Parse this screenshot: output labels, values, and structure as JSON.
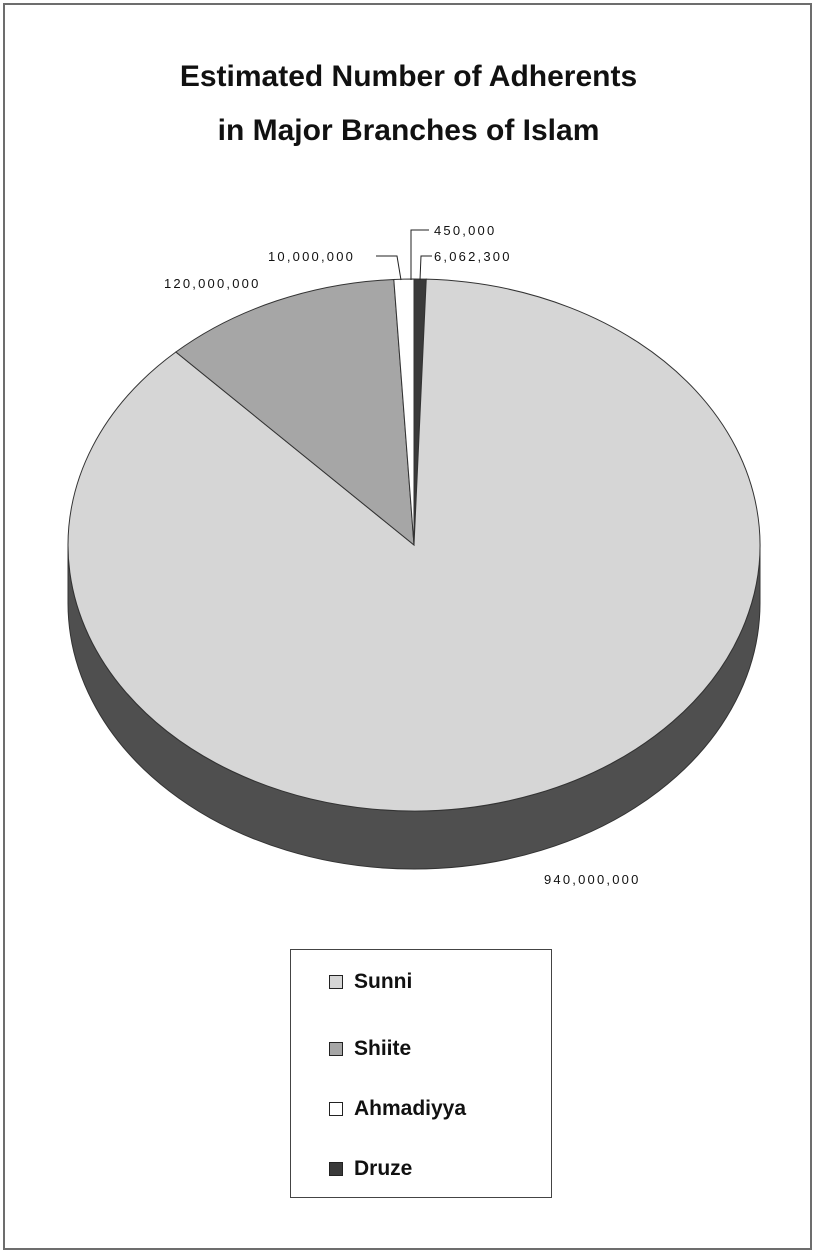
{
  "chart_data": {
    "type": "pie",
    "title_line1": "Estimated Number of Adherents",
    "title_line2": "in Major Branches of Islam",
    "slices": [
      {
        "name": "Sunni",
        "value": 940000000,
        "label": "940,000,000",
        "color": "#d6d6d6"
      },
      {
        "name": "Shiite",
        "value": 120000000,
        "label": "120,000,000",
        "color": "#a6a6a6"
      },
      {
        "name": "Ahmadiyya",
        "value": 10000000,
        "label": "10,000,000",
        "color": "#ffffff"
      },
      {
        "name": "Druze",
        "value": 6062300,
        "label": "6,062,300",
        "color": "#3a3a3a"
      }
    ],
    "extra_label": "450,000",
    "legend_position": "bottom"
  }
}
